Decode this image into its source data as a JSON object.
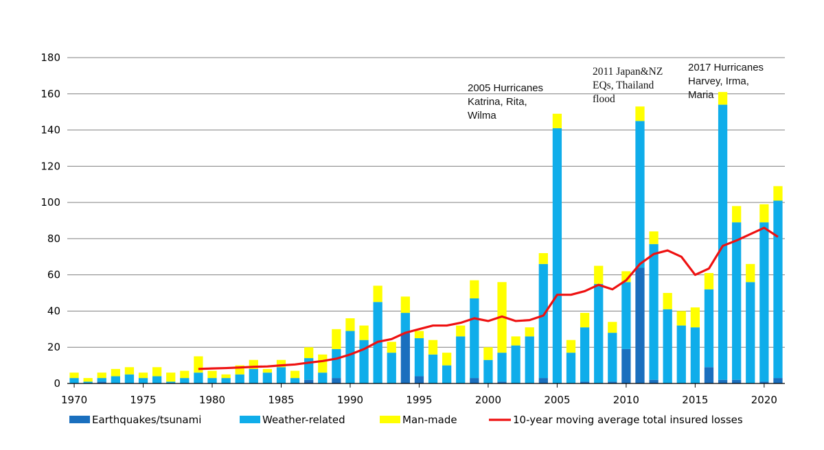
{
  "chart_data": {
    "type": "bar",
    "stacked": true,
    "x": [
      1970,
      1971,
      1972,
      1973,
      1974,
      1975,
      1976,
      1977,
      1978,
      1979,
      1980,
      1981,
      1982,
      1983,
      1984,
      1985,
      1986,
      1987,
      1988,
      1989,
      1990,
      1991,
      1992,
      1993,
      1994,
      1995,
      1996,
      1997,
      1998,
      1999,
      2000,
      2001,
      2002,
      2003,
      2004,
      2005,
      2006,
      2007,
      2008,
      2009,
      2010,
      2011,
      2012,
      2013,
      2014,
      2015,
      2016,
      2017,
      2018,
      2019,
      2020,
      2021
    ],
    "series": [
      {
        "name": "Earthquakes/tsunami",
        "color": "#1a6fbe",
        "values": [
          0,
          0,
          1,
          0,
          0,
          0,
          0,
          0,
          0,
          0,
          0,
          0,
          0,
          0,
          0,
          0,
          0,
          2,
          0,
          3,
          0,
          0,
          0,
          0,
          28,
          4,
          0,
          0,
          0,
          3,
          0,
          1,
          0,
          0,
          3,
          0,
          0,
          1,
          0,
          1,
          19,
          64,
          2,
          0,
          0,
          0,
          9,
          2,
          2,
          0,
          1,
          3
        ]
      },
      {
        "name": "Weather-related",
        "color": "#0fadea",
        "values": [
          3,
          1,
          2,
          4,
          5,
          3,
          4,
          1,
          3,
          6,
          3,
          3,
          5,
          8,
          6,
          9,
          3,
          12,
          6,
          16,
          29,
          24,
          45,
          17,
          11,
          21,
          16,
          10,
          26,
          44,
          13,
          16,
          21,
          26,
          63,
          141,
          17,
          30,
          55,
          27,
          37,
          81,
          75,
          41,
          32,
          31,
          43,
          152,
          87,
          56,
          88,
          98
        ]
      },
      {
        "name": "Man-made",
        "color": "#ffff00",
        "values": [
          3,
          2,
          3,
          4,
          4,
          3,
          5,
          5,
          4,
          9,
          4,
          2,
          5,
          5,
          2,
          4,
          4,
          6,
          10,
          11,
          7,
          8,
          9,
          6,
          9,
          4,
          8,
          7,
          6,
          10,
          7,
          39,
          5,
          5,
          6,
          8,
          7,
          8,
          10,
          6,
          6,
          8,
          7,
          9,
          8,
          11,
          9,
          7,
          9,
          10,
          10,
          8
        ]
      }
    ],
    "line": {
      "name": "10-year moving average total insured losses",
      "color": "#ee1111",
      "x": [
        1979,
        1980,
        1981,
        1982,
        1983,
        1984,
        1985,
        1986,
        1987,
        1988,
        1989,
        1990,
        1991,
        1992,
        1993,
        1994,
        1995,
        1996,
        1997,
        1998,
        1999,
        2000,
        2001,
        2002,
        2003,
        2004,
        2005,
        2006,
        2007,
        2008,
        2009,
        2010,
        2011,
        2012,
        2013,
        2014,
        2015,
        2016,
        2017,
        2018,
        2019,
        2020,
        2021
      ],
      "values": [
        8,
        8.3,
        8.5,
        8.8,
        9.2,
        9.4,
        10,
        10.5,
        11.5,
        12.4,
        13.7,
        16,
        19,
        23,
        24.5,
        28,
        30,
        32,
        32,
        33.5,
        36,
        34.5,
        37,
        34.5,
        35,
        37.5,
        49,
        49,
        51,
        54.5,
        52,
        57,
        66,
        71.5,
        73.5,
        70,
        60,
        63.5,
        76,
        79,
        82.5,
        86,
        81
      ]
    },
    "xlim": [
      1969.5,
      2021.5
    ],
    "ylim": [
      0,
      180
    ],
    "yticks": [
      0,
      20,
      40,
      60,
      80,
      100,
      120,
      140,
      160,
      180
    ],
    "xticks": [
      1970,
      1975,
      1980,
      1985,
      1990,
      1995,
      2000,
      2005,
      2010,
      2015,
      2020
    ],
    "grid": true,
    "legend_position": "bottom",
    "annotations": [
      {
        "lines": [
          "2005 Hurricanes",
          "Katrina, Rita,",
          "Wilma"
        ],
        "year": 2005
      },
      {
        "lines": [
          "2011 Japan&NZ",
          "EQs, Thailand",
          "flood"
        ],
        "year": 2011
      },
      {
        "lines": [
          "2017 Hurricanes",
          "Harvey, Irma,",
          "Maria"
        ],
        "year": 2017
      }
    ],
    "title": "",
    "xlabel": "",
    "ylabel": ""
  }
}
